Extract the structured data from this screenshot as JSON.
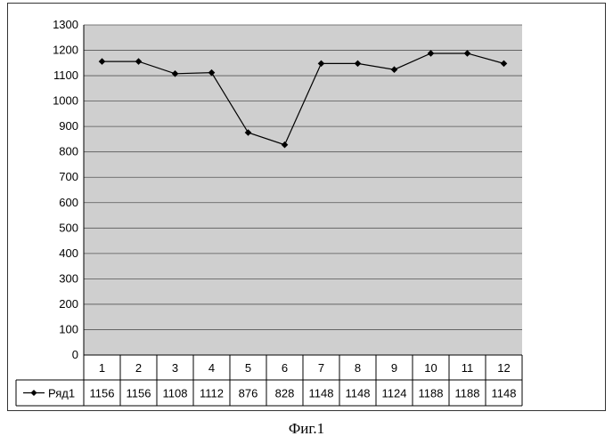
{
  "chart_data": {
    "type": "line",
    "categories": [
      "1",
      "2",
      "3",
      "4",
      "5",
      "6",
      "7",
      "8",
      "9",
      "10",
      "11",
      "12"
    ],
    "series": [
      {
        "name": "Ряд1",
        "values": [
          1156,
          1156,
          1108,
          1112,
          876,
          828,
          1148,
          1148,
          1124,
          1188,
          1188,
          1148
        ]
      }
    ],
    "ylim": [
      0,
      1300
    ],
    "ytick_step": 100,
    "yticks": [
      "0",
      "100",
      "200",
      "300",
      "400",
      "500",
      "600",
      "700",
      "800",
      "900",
      "1000",
      "1100",
      "1200",
      "1300"
    ],
    "grid": true,
    "legend": "data-table",
    "colors": {
      "plot_bg": "#cfcfcf",
      "grid": "#555555",
      "line": "#000000"
    }
  },
  "caption": "Фиг.1"
}
